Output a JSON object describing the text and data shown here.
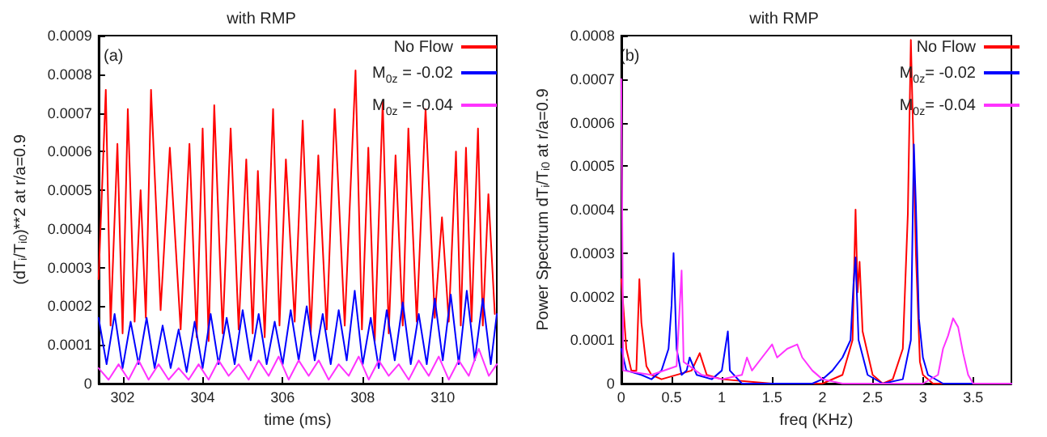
{
  "chart_data": [
    {
      "type": "line",
      "title": "with RMP",
      "xlabel": "time (ms)",
      "ylabel": "(dT$_{i}$/T$_{i0}$)**2 at r/a=0.9",
      "annotations": [
        "(a)"
      ],
      "xlim": [
        301.4,
        311.35
      ],
      "xticks": [
        302,
        304,
        306,
        308,
        310
      ],
      "ylim": [
        0,
        0.0009
      ],
      "yticks": [
        0,
        0.0001,
        0.0002,
        0.0003,
        0.0004,
        0.0005,
        0.0006,
        0.0007,
        0.0008,
        0.0009
      ],
      "legend": "top right",
      "grid": false,
      "marker": "none",
      "line_style": "solid",
      "series": [
        {
          "name": "No Flow",
          "color": "#ff0000",
          "x": [
            301.4,
            301.58,
            301.7,
            301.87,
            302.0,
            302.13,
            302.3,
            302.45,
            302.58,
            302.71,
            302.95,
            303.18,
            303.45,
            303.67,
            303.85,
            304.0,
            304.15,
            304.29,
            304.5,
            304.7,
            304.9,
            305.09,
            305.25,
            305.38,
            305.55,
            305.76,
            305.92,
            306.08,
            306.3,
            306.5,
            306.7,
            306.89,
            307.1,
            307.3,
            307.55,
            307.82,
            307.98,
            308.14,
            308.3,
            308.5,
            308.65,
            308.82,
            309.0,
            309.14,
            309.35,
            309.57,
            309.8,
            309.98,
            310.15,
            310.33,
            310.45,
            310.58,
            310.72,
            310.88,
            311.0,
            311.14,
            311.3
          ],
          "values": [
            0.00027,
            0.00076,
            0.00015,
            0.00062,
            0.00013,
            0.00071,
            0.00016,
            0.0005,
            0.00017,
            0.00076,
            0.00019,
            0.00061,
            0.00014,
            0.00062,
            0.00012,
            0.00066,
            0.00011,
            0.00072,
            0.00013,
            0.00066,
            0.00014,
            0.00058,
            0.00013,
            0.00055,
            0.00012,
            0.00071,
            0.00015,
            0.00058,
            0.00016,
            0.00068,
            0.00013,
            0.00059,
            0.00014,
            0.00071,
            0.00015,
            0.00081,
            0.00014,
            0.00061,
            0.00011,
            0.00073,
            0.00013,
            0.00059,
            0.00015,
            0.00066,
            0.00016,
            0.00071,
            0.00017,
            0.00043,
            0.00016,
            0.0006,
            0.00015,
            0.00061,
            0.00016,
            0.00066,
            0.00015,
            0.00049,
            0.00018
          ]
        },
        {
          "name": "M$_{0z}$ = -0.02",
          "color": "#0000ff",
          "x": [
            301.4,
            301.6,
            301.8,
            302.0,
            302.2,
            302.4,
            302.6,
            302.8,
            303.0,
            303.2,
            303.4,
            303.6,
            303.8,
            304.0,
            304.2,
            304.4,
            304.6,
            304.8,
            305.0,
            305.2,
            305.4,
            305.6,
            305.8,
            306.0,
            306.2,
            306.4,
            306.6,
            306.8,
            307.0,
            307.2,
            307.4,
            307.6,
            307.8,
            308.0,
            308.2,
            308.4,
            308.6,
            308.8,
            309.0,
            309.2,
            309.4,
            309.6,
            309.8,
            310.0,
            310.2,
            310.4,
            310.6,
            310.8,
            311.0,
            311.2,
            311.35
          ],
          "values": [
            0.00017,
            5e-05,
            0.00018,
            4e-05,
            0.00016,
            5e-05,
            0.00017,
            4e-05,
            0.00015,
            4e-05,
            0.00014,
            3e-05,
            0.00016,
            4e-05,
            0.00018,
            5e-05,
            0.00017,
            5e-05,
            0.00019,
            6e-05,
            0.00018,
            5e-05,
            0.00016,
            5e-05,
            0.00019,
            6e-05,
            0.0002,
            6e-05,
            0.00018,
            5e-05,
            0.00019,
            6e-05,
            0.00024,
            5e-05,
            0.00017,
            4e-05,
            0.00019,
            6e-05,
            0.00021,
            5e-05,
            0.00018,
            5e-05,
            0.00022,
            6e-05,
            0.00023,
            5e-05,
            0.00024,
            6e-05,
            0.00022,
            5e-05,
            0.00018
          ]
        },
        {
          "name": "M$_{0z}$ = -0.04",
          "color": "#ff33ff",
          "x": [
            301.4,
            301.65,
            301.9,
            302.15,
            302.4,
            302.65,
            302.9,
            303.15,
            303.4,
            303.65,
            303.9,
            304.15,
            304.4,
            304.65,
            304.9,
            305.15,
            305.4,
            305.65,
            305.9,
            306.15,
            306.4,
            306.65,
            306.9,
            307.15,
            307.4,
            307.65,
            307.9,
            308.15,
            308.4,
            308.65,
            308.9,
            309.15,
            309.4,
            309.65,
            309.9,
            310.15,
            310.4,
            310.65,
            310.9,
            311.15,
            311.35
          ],
          "values": [
            4e-05,
            1e-05,
            5e-05,
            1e-05,
            6e-05,
            1e-05,
            5e-05,
            1e-05,
            4e-05,
            1e-05,
            5e-05,
            1e-05,
            6e-05,
            2e-05,
            5e-05,
            1e-05,
            6e-05,
            2e-05,
            7e-05,
            1e-05,
            6e-05,
            2e-05,
            6e-05,
            1e-05,
            5e-05,
            2e-05,
            7e-05,
            1e-05,
            6e-05,
            2e-05,
            5e-05,
            1e-05,
            6e-05,
            2e-05,
            7e-05,
            1e-05,
            6e-05,
            2e-05,
            9e-05,
            2e-05,
            5e-05
          ]
        }
      ]
    },
    {
      "type": "line",
      "title": "with RMP",
      "xlabel": "freq (KHz)",
      "ylabel": "Power Spectrum dT$_{i}$/T$_{i0}$ at r/a=0.9",
      "annotations": [
        "(b)"
      ],
      "xlim": [
        0,
        3.88
      ],
      "xticks": [
        0,
        0.5,
        1,
        1.5,
        2,
        2.5,
        3,
        3.5
      ],
      "ylim": [
        0,
        0.0008
      ],
      "yticks": [
        0,
        0.0001,
        0.0002,
        0.0003,
        0.0004,
        0.0005,
        0.0006,
        0.0007,
        0.0008
      ],
      "legend": "top right",
      "grid": false,
      "marker": "none",
      "line_style": "solid",
      "series": [
        {
          "name": "No Flow",
          "color": "#ff0000",
          "x": [
            0,
            0.01,
            0.05,
            0.1,
            0.15,
            0.18,
            0.2,
            0.25,
            0.3,
            0.4,
            0.7,
            0.78,
            0.85,
            1.0,
            1.5,
            2.0,
            2.2,
            2.3,
            2.33,
            2.35,
            2.37,
            2.4,
            2.5,
            2.6,
            2.7,
            2.8,
            2.85,
            2.88,
            2.9,
            2.93,
            2.97,
            3.0,
            3.1,
            3.5,
            3.88
          ],
          "values": [
            0.00024,
            0.00021,
            8e-05,
            3e-05,
            3e-05,
            0.00024,
            0.00014,
            4e-05,
            2e-05,
            1e-05,
            3e-05,
            7e-05,
            2e-05,
            1e-05,
            0,
            0,
            2e-05,
            0.0001,
            0.0004,
            0.00021,
            0.00028,
            0.00012,
            2e-05,
            0,
            1e-05,
            8e-05,
            0.00039,
            0.00079,
            0.0006,
            0.0003,
            5e-05,
            2e-05,
            0,
            0,
            0
          ]
        },
        {
          "name": "M$_{0z}$= -0.02",
          "color": "#0000ff",
          "x": [
            0,
            0.05,
            0.2,
            0.3,
            0.4,
            0.47,
            0.5,
            0.52,
            0.55,
            0.6,
            0.65,
            0.68,
            0.75,
            0.9,
            1.0,
            1.06,
            1.08,
            1.2,
            1.9,
            2.0,
            2.1,
            2.2,
            2.28,
            2.31,
            2.33,
            2.36,
            2.45,
            2.6,
            2.8,
            2.88,
            2.91,
            2.93,
            2.96,
            3.0,
            3.05,
            3.2,
            3.88
          ],
          "values": [
            8e-05,
            3e-05,
            2e-05,
            1e-05,
            3e-05,
            8e-05,
            0.00018,
            0.0003,
            8e-05,
            2e-05,
            3e-05,
            6e-05,
            2e-05,
            1e-05,
            3e-05,
            0.00012,
            3e-05,
            0,
            0,
            1e-05,
            3e-05,
            6e-05,
            0.0001,
            0.00023,
            0.00029,
            0.0001,
            2e-05,
            0,
            1e-05,
            0.0001,
            0.00055,
            0.00041,
            0.00015,
            6e-05,
            2e-05,
            0,
            0
          ]
        },
        {
          "name": "M$_{0z}$= -0.04",
          "color": "#ff33ff",
          "x": [
            0,
            0.02,
            0.3,
            0.55,
            0.6,
            0.62,
            0.8,
            1.0,
            1.2,
            1.25,
            1.3,
            1.4,
            1.5,
            1.55,
            1.65,
            1.75,
            1.8,
            1.9,
            2.0,
            2.2,
            3.0,
            3.15,
            3.2,
            3.25,
            3.3,
            3.35,
            3.4,
            3.45,
            3.5,
            3.88
          ],
          "values": [
            0.0007,
            3e-05,
            2e-05,
            4e-05,
            0.00026,
            5e-05,
            2e-05,
            1e-05,
            2e-05,
            6e-05,
            3e-05,
            6e-05,
            9e-05,
            6e-05,
            8e-05,
            9e-05,
            6e-05,
            3e-05,
            1e-05,
            0,
            0,
            2e-05,
            8e-05,
            0.00011,
            0.00015,
            0.00013,
            7e-05,
            2e-05,
            0,
            0
          ]
        }
      ]
    }
  ]
}
